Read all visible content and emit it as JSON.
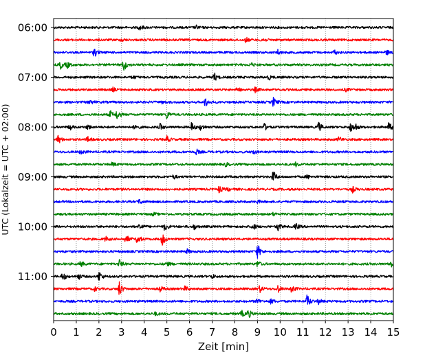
{
  "chart_data": {
    "type": "line",
    "title": "",
    "xlabel": "Zeit  [min]",
    "ylabel": "UTC (Lokalzeit = UTC + 02:00)",
    "xlim": [
      0,
      15
    ],
    "x_ticks": [
      0,
      1,
      2,
      3,
      4,
      5,
      6,
      7,
      8,
      9,
      10,
      11,
      12,
      13,
      14,
      15
    ],
    "grid": "vertical-dotted",
    "row_minutes": 15,
    "y_tick_labels": [
      "06:00",
      "07:00",
      "08:00",
      "09:00",
      "10:00",
      "11:00"
    ],
    "y_tick_every_rows": 4,
    "colors": [
      "#000000",
      "#ff0000",
      "#0000ff",
      "#008000"
    ],
    "series": [
      {
        "name": "06:00",
        "color": "#000000",
        "events": [
          [
            3.8,
            0.35
          ],
          [
            6.3,
            0.2
          ]
        ]
      },
      {
        "name": "06:15",
        "color": "#ff0000",
        "events": [
          [
            8.5,
            0.3
          ],
          [
            9.2,
            0.35
          ],
          [
            3.0,
            0.2
          ]
        ]
      },
      {
        "name": "06:30",
        "color": "#0000ff",
        "events": [
          [
            1.8,
            0.6
          ],
          [
            9.9,
            0.35
          ],
          [
            12.4,
            0.3
          ],
          [
            14.7,
            0.3
          ]
        ]
      },
      {
        "name": "06:45",
        "color": "#008000",
        "events": [
          [
            0.3,
            0.5
          ],
          [
            0.6,
            0.4
          ],
          [
            3.1,
            0.8
          ],
          [
            8.7,
            0.3
          ]
        ]
      },
      {
        "name": "07:00",
        "color": "#000000",
        "events": [
          [
            7.1,
            0.55
          ],
          [
            9.5,
            0.3
          ],
          [
            3.5,
            0.2
          ]
        ]
      },
      {
        "name": "07:15",
        "color": "#ff0000",
        "events": [
          [
            2.6,
            0.3
          ],
          [
            8.1,
            0.3
          ],
          [
            8.9,
            0.3
          ],
          [
            12.9,
            0.2
          ]
        ]
      },
      {
        "name": "07:30",
        "color": "#0000ff",
        "events": [
          [
            1.6,
            0.3
          ],
          [
            6.7,
            0.6
          ],
          [
            9.7,
            0.6
          ],
          [
            4.8,
            0.2
          ]
        ]
      },
      {
        "name": "07:45",
        "color": "#008000",
        "events": [
          [
            2.5,
            0.5
          ],
          [
            2.8,
            0.6
          ],
          [
            5.0,
            0.55
          ]
        ]
      },
      {
        "name": "08:00",
        "color": "#000000",
        "events": [
          [
            0.7,
            0.4
          ],
          [
            1.5,
            0.35
          ],
          [
            3.6,
            0.4
          ],
          [
            4.7,
            0.4
          ],
          [
            6.1,
            0.6
          ],
          [
            6.5,
            0.45
          ],
          [
            9.3,
            0.45
          ],
          [
            11.7,
            0.65
          ],
          [
            13.1,
            0.6
          ],
          [
            13.3,
            0.55
          ],
          [
            14.8,
            0.6
          ]
        ]
      },
      {
        "name": "08:15",
        "color": "#ff0000",
        "events": [
          [
            0.2,
            0.6
          ],
          [
            1.5,
            0.35
          ],
          [
            5.0,
            0.4
          ],
          [
            12.6,
            0.35
          ]
        ]
      },
      {
        "name": "08:30",
        "color": "#0000ff",
        "events": [
          [
            1.2,
            0.3
          ],
          [
            6.3,
            0.35
          ],
          [
            8.8,
            0.3
          ]
        ]
      },
      {
        "name": "08:45",
        "color": "#008000",
        "events": [
          [
            2.6,
            0.25
          ],
          [
            7.6,
            0.25
          ],
          [
            10.7,
            0.25
          ]
        ]
      },
      {
        "name": "09:00",
        "color": "#000000",
        "events": [
          [
            9.7,
            0.8
          ],
          [
            5.3,
            0.25
          ],
          [
            11.2,
            0.25
          ]
        ]
      },
      {
        "name": "09:15",
        "color": "#ff0000",
        "events": [
          [
            7.3,
            0.45
          ],
          [
            7.7,
            0.2
          ],
          [
            13.2,
            0.4
          ]
        ]
      },
      {
        "name": "09:30",
        "color": "#0000ff",
        "events": [
          [
            3.8,
            0.3
          ],
          [
            9.0,
            0.2
          ]
        ]
      },
      {
        "name": "09:45",
        "color": "#008000",
        "events": [
          [
            4.4,
            0.2
          ],
          [
            9.7,
            0.2
          ]
        ]
      },
      {
        "name": "10:00",
        "color": "#000000",
        "events": [
          [
            3.8,
            0.5
          ],
          [
            4.9,
            0.5
          ],
          [
            6.2,
            0.35
          ],
          [
            8.8,
            0.45
          ],
          [
            9.9,
            0.55
          ],
          [
            10.7,
            0.4
          ]
        ]
      },
      {
        "name": "10:15",
        "color": "#ff0000",
        "events": [
          [
            3.2,
            0.55
          ],
          [
            3.7,
            0.7
          ],
          [
            4.8,
            0.85
          ],
          [
            2.3,
            0.3
          ]
        ]
      },
      {
        "name": "10:30",
        "color": "#0000ff",
        "events": [
          [
            9.0,
            1.0
          ],
          [
            5.9,
            0.25
          ]
        ]
      },
      {
        "name": "10:45",
        "color": "#008000",
        "events": [
          [
            1.2,
            0.35
          ],
          [
            2.9,
            0.55
          ],
          [
            5.0,
            0.3
          ],
          [
            9.0,
            0.4
          ],
          [
            14.9,
            0.5
          ]
        ]
      },
      {
        "name": "11:00",
        "color": "#000000",
        "events": [
          [
            0.4,
            0.6
          ],
          [
            1.1,
            0.35
          ],
          [
            2.0,
            0.75
          ],
          [
            7.0,
            0.25
          ]
        ]
      },
      {
        "name": "11:15",
        "color": "#ff0000",
        "events": [
          [
            1.8,
            0.3
          ],
          [
            2.9,
            1.0
          ],
          [
            4.7,
            0.4
          ],
          [
            5.8,
            0.35
          ],
          [
            9.1,
            0.45
          ],
          [
            9.9,
            0.5
          ],
          [
            10.5,
            0.55
          ]
        ]
      },
      {
        "name": "11:30",
        "color": "#0000ff",
        "events": [
          [
            9.0,
            0.35
          ],
          [
            9.6,
            0.3
          ],
          [
            11.2,
            0.9
          ],
          [
            11.7,
            0.3
          ]
        ]
      },
      {
        "name": "11:45",
        "color": "#008000",
        "events": [
          [
            8.3,
            0.4
          ],
          [
            8.6,
            0.55
          ],
          [
            4.5,
            0.2
          ]
        ]
      }
    ]
  }
}
